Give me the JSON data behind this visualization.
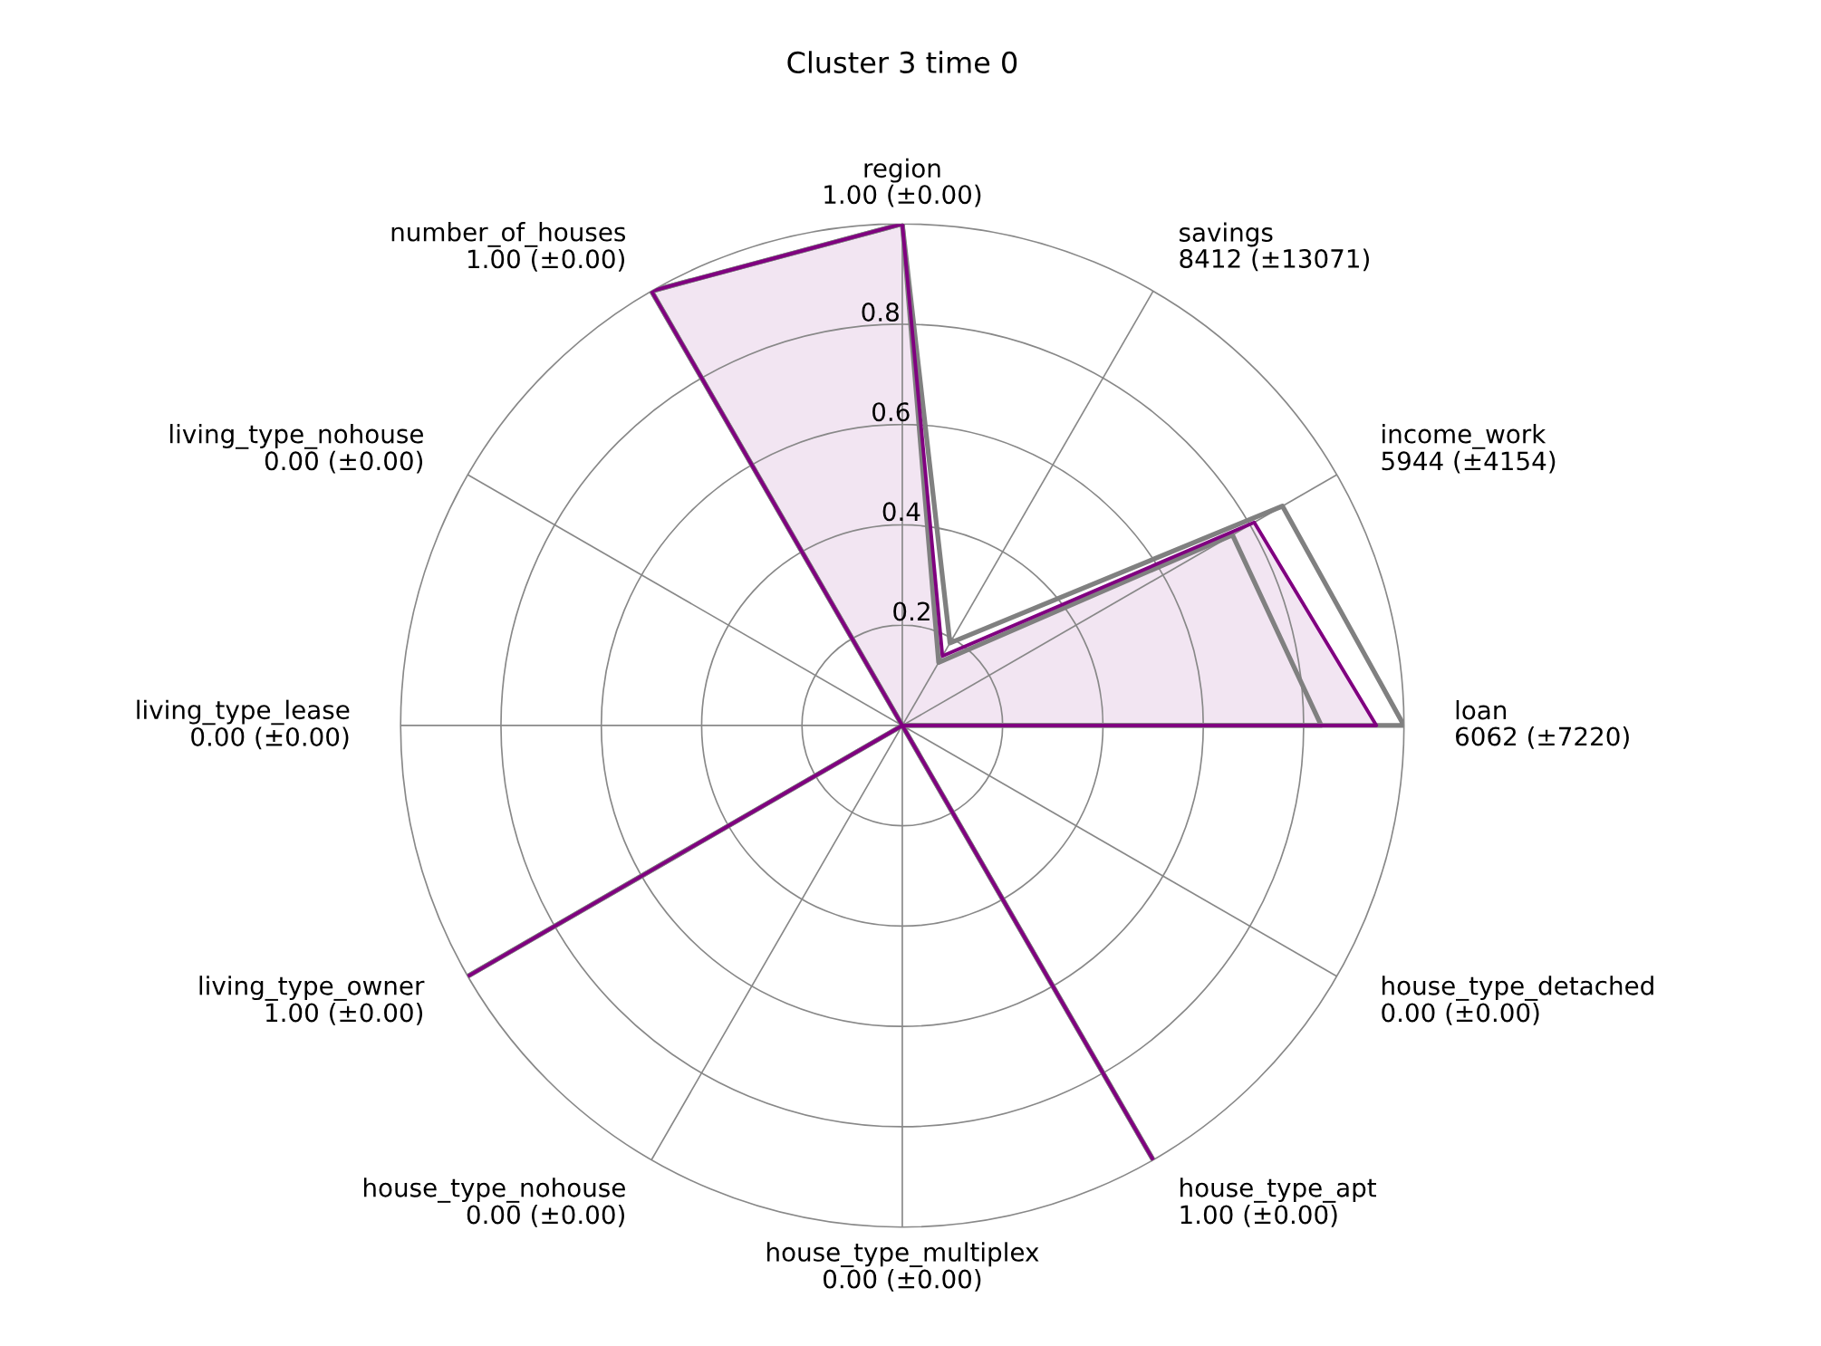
{
  "chart_data": {
    "type": "radar",
    "title": "Cluster 3 time 0",
    "categories": [
      "region\n1.00 (±0.00)",
      "savings\n8412 (±13071)",
      "income_work\n5944 (±4154)",
      "loan\n6062 (±7220)",
      "house_type_detached\n0.00 (±0.00)",
      "house_type_apt\n1.00 (±0.00)",
      "house_type_multiplex\n0.00 (±0.00)",
      "house_type_nohouse\n0.00 (±0.00)",
      "living_type_owner\n1.00 (±0.00)",
      "living_type_lease\n0.00 (±0.00)",
      "living_type_nohouse\n0.00 (±0.00)",
      "number_of_houses\n1.00 (±0.00)"
    ],
    "series": [
      {
        "color": "#800080",
        "values": [
          1.0,
          0.16,
          0.81,
          0.945,
          0,
          1.0,
          0,
          0,
          1.0,
          0,
          0,
          1.0
        ]
      },
      {
        "color": "#808080",
        "values": [
          1.0,
          0.19,
          0.875,
          1.0,
          0,
          1.0,
          0,
          0,
          1.0,
          0,
          0,
          1.0
        ]
      },
      {
        "color": "#808080",
        "values": [
          1.0,
          0.145,
          0.76,
          0.835,
          0,
          1.0,
          0,
          0,
          1.0,
          0,
          0,
          1.0
        ]
      }
    ],
    "ylim": [
      0,
      1.0
    ],
    "yticks": [
      0.2,
      0.4,
      0.6,
      0.8
    ],
    "grid": true
  }
}
